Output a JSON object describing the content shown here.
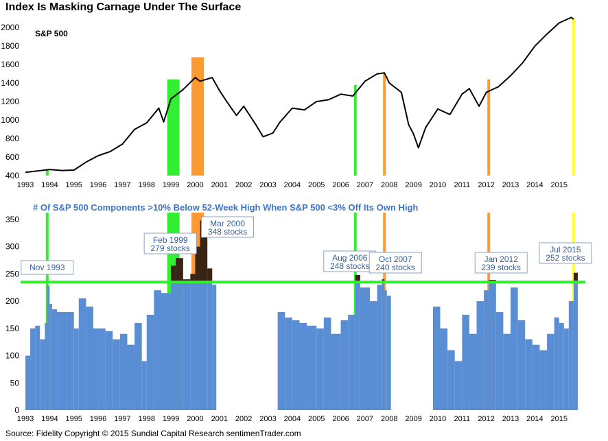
{
  "title": "Index Is Masking Carnage Under The Surface",
  "footer": "Source:  Fidelity   Copyright © 2015 Sundial Capital Research  sentimenTrader.com",
  "colors": {
    "price_line": "#000000",
    "bar": "#5a8ed4",
    "bar_dark": "#3a2414",
    "threshold": "#33ee33",
    "green_marker": "#33ee33",
    "orange_marker": "#ff9a33",
    "yellow_marker": "#ffff33",
    "subtitle": "#3f74c4",
    "callout_text": "#36609a"
  },
  "chart_data": [
    {
      "type": "line",
      "name": "top-panel",
      "series_label": "S&P 500",
      "x_ticks": [
        "1993",
        "1994",
        "1995",
        "1996",
        "1997",
        "1998",
        "1999",
        "2000",
        "2001",
        "2002",
        "2003",
        "2004",
        "2005",
        "2006",
        "2007",
        "2008",
        "2009",
        "2010",
        "2011",
        "2012",
        "2013",
        "2014",
        "2015"
      ],
      "y_ticks": [
        400,
        600,
        800,
        1000,
        1200,
        1400,
        1600,
        1800,
        2000
      ],
      "ylim": [
        400,
        2150
      ],
      "xlim": [
        1993.0,
        2015.8
      ],
      "series": [
        {
          "name": "S&P 500",
          "x": [
            1993.0,
            1993.5,
            1994.0,
            1994.5,
            1995.0,
            1995.5,
            1996.0,
            1996.5,
            1997.0,
            1997.5,
            1998.0,
            1998.5,
            1998.7,
            1999.0,
            1999.5,
            2000.0,
            2000.2,
            2000.7,
            2001.0,
            2001.3,
            2001.7,
            2002.0,
            2002.5,
            2002.8,
            2003.2,
            2003.5,
            2004.0,
            2004.5,
            2005.0,
            2005.5,
            2006.0,
            2006.5,
            2007.0,
            2007.5,
            2007.8,
            2008.0,
            2008.5,
            2008.8,
            2009.0,
            2009.2,
            2009.5,
            2010.0,
            2010.5,
            2011.0,
            2011.3,
            2011.7,
            2012.0,
            2012.5,
            2013.0,
            2013.5,
            2014.0,
            2014.5,
            2015.0,
            2015.5,
            2015.6
          ],
          "values": [
            435,
            450,
            466,
            455,
            459,
            545,
            615,
            660,
            740,
            900,
            970,
            1130,
            980,
            1230,
            1330,
            1460,
            1420,
            1460,
            1320,
            1200,
            1050,
            1150,
            950,
            820,
            860,
            980,
            1130,
            1110,
            1200,
            1220,
            1280,
            1260,
            1420,
            1500,
            1510,
            1400,
            1300,
            950,
            850,
            700,
            920,
            1120,
            1060,
            1280,
            1340,
            1150,
            1300,
            1360,
            1480,
            1620,
            1800,
            1930,
            2050,
            2110,
            2090
          ]
        }
      ],
      "markers": [
        {
          "year": 1993.9,
          "color": "green",
          "from": 0,
          "to": 470
        },
        {
          "year": 1999.1,
          "color": "green",
          "band": true,
          "from": 0,
          "to": 1440
        },
        {
          "year": 2000.1,
          "color": "orange",
          "band": true,
          "from": 0,
          "to": 1680
        },
        {
          "year": 2006.6,
          "color": "green",
          "from": 0,
          "to": 1380
        },
        {
          "year": 2007.8,
          "color": "orange",
          "from": 0,
          "to": 1500
        },
        {
          "year": 2012.1,
          "color": "orange",
          "from": 0,
          "to": 1440
        },
        {
          "year": 2015.6,
          "color": "yellow",
          "from": 0,
          "to": 2100
        }
      ]
    },
    {
      "type": "bar",
      "name": "bottom-panel",
      "subtitle": "# Of S&P 500 Components >10% Below 52-Week High When S&P 500 <3% Off Its Own High",
      "x_ticks": [
        "1993",
        "1994",
        "1995",
        "1996",
        "1997",
        "1998",
        "1999",
        "2000",
        "2001",
        "2002",
        "2003",
        "2004",
        "2005",
        "2006",
        "2007",
        "2008",
        "2009",
        "2010",
        "2011",
        "2012",
        "2013",
        "2014",
        "2015"
      ],
      "y_ticks": [
        0,
        50,
        100,
        150,
        200,
        250,
        300,
        350
      ],
      "ylim": [
        0,
        375
      ],
      "xlim": [
        1993.0,
        2015.8
      ],
      "threshold": 235,
      "series": [
        {
          "name": "# of components",
          "x": [
            1993.0,
            1993.2,
            1993.4,
            1993.6,
            1993.8,
            1993.9,
            1994.0,
            1994.1,
            1994.3,
            1994.7,
            1995.0,
            1995.2,
            1995.5,
            1995.8,
            1996.0,
            1996.3,
            1996.6,
            1996.9,
            1997.2,
            1997.5,
            1997.8,
            1998.0,
            1998.3,
            1998.6,
            1999.0,
            1999.2,
            1999.5,
            1999.8,
            2000.0,
            2000.2,
            2000.5,
            2000.7,
            2003.4,
            2003.7,
            2004.0,
            2004.3,
            2004.6,
            2005.0,
            2005.3,
            2005.6,
            2006.0,
            2006.3,
            2006.6,
            2006.8,
            2007.2,
            2007.5,
            2007.7,
            2007.8,
            2007.9,
            2009.8,
            2010.1,
            2010.4,
            2010.7,
            2011.0,
            2011.3,
            2011.6,
            2011.9,
            2012.1,
            2012.4,
            2012.7,
            2013.0,
            2013.3,
            2013.6,
            2013.9,
            2014.2,
            2014.5,
            2014.8,
            2015.0,
            2015.2,
            2015.4,
            2015.6
          ],
          "values": [
            100,
            150,
            155,
            130,
            160,
            228,
            195,
            185,
            180,
            180,
            150,
            205,
            190,
            150,
            150,
            145,
            130,
            140,
            120,
            160,
            90,
            175,
            220,
            215,
            265,
            279,
            240,
            250,
            300,
            348,
            260,
            230,
            180,
            170,
            165,
            160,
            155,
            150,
            170,
            140,
            165,
            175,
            248,
            225,
            200,
            230,
            240,
            220,
            210,
            190,
            150,
            110,
            90,
            175,
            140,
            200,
            220,
            239,
            180,
            140,
            225,
            165,
            130,
            120,
            110,
            140,
            170,
            160,
            150,
            200,
            252
          ]
        }
      ],
      "annotations": [
        {
          "label": "Nov 1993",
          "value": "",
          "year": 1993.9
        },
        {
          "label": "Feb 1999",
          "value": "279 stocks",
          "year": 1999.2
        },
        {
          "label": "Mar 2000",
          "value": "348 stocks",
          "year": 2000.2
        },
        {
          "label": "Aug 2006",
          "value": "248 stocks",
          "year": 2006.6
        },
        {
          "label": "Oct 2007",
          "value": "240 stocks",
          "year": 2007.8
        },
        {
          "label": "Jan 2012",
          "value": "239 stocks",
          "year": 2012.1
        },
        {
          "label": "Jul 2015",
          "value": "252 stocks",
          "year": 2015.6
        }
      ]
    }
  ]
}
